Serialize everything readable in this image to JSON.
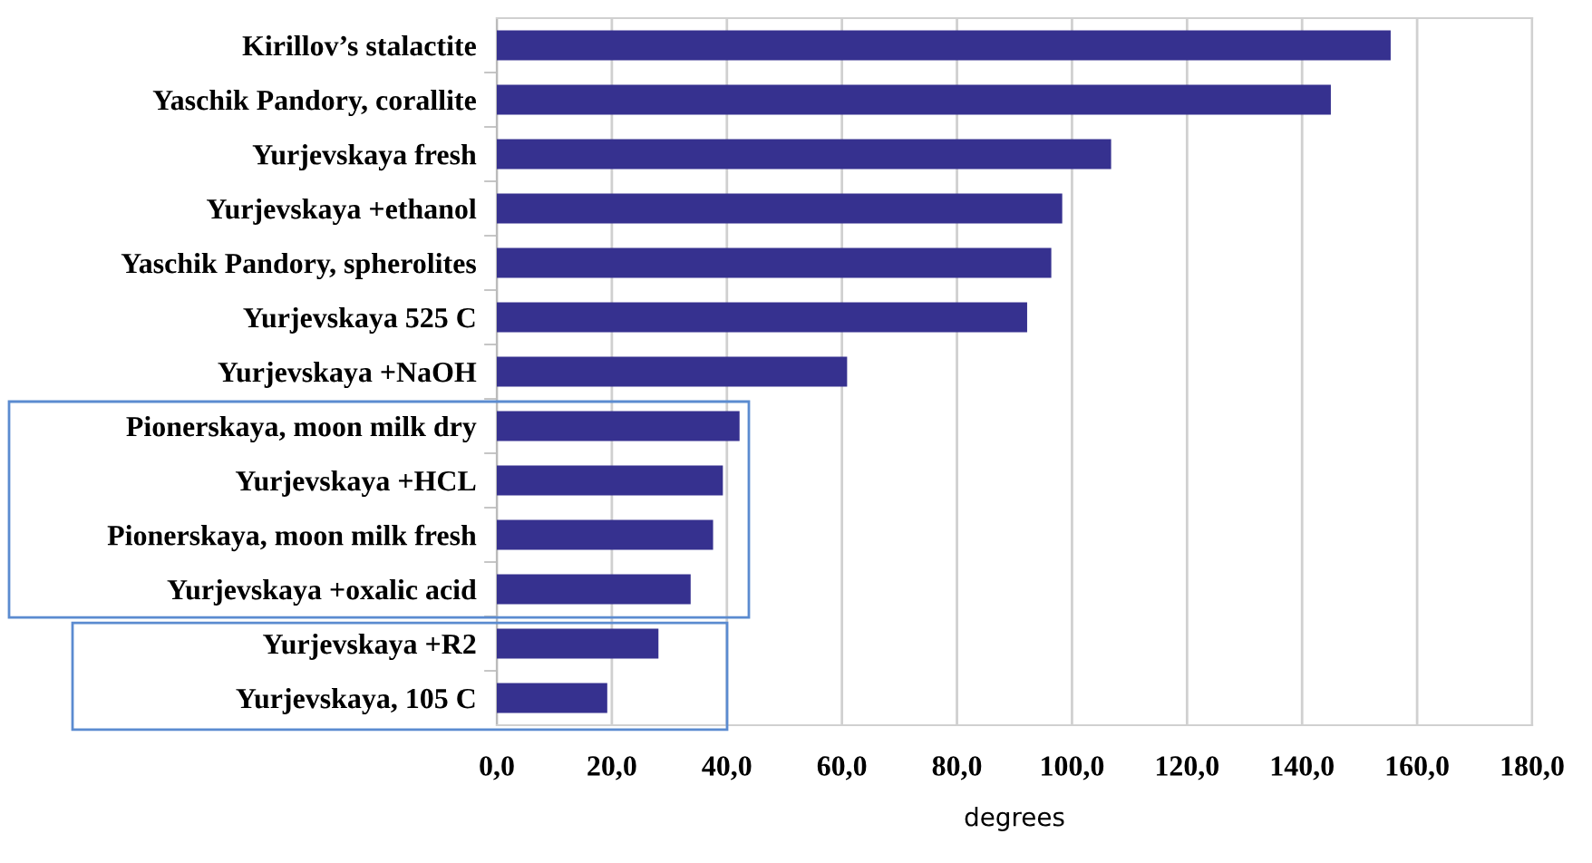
{
  "chart_data": {
    "type": "bar",
    "orientation": "horizontal",
    "xlabel": "degrees",
    "categories": [
      "Kirillov’s stalactite",
      "Yaschik Pandory, corallite",
      "Yurjevskaya fresh",
      "Yurjevskaya +ethanol",
      "Yaschik Pandory, spherolites",
      "Yurjevskaya 525 C",
      "Yurjevskaya +NaOH",
      "Pionerskaya, moon milk dry",
      "Yurjevskaya +HCL",
      "Pionerskaya, moon milk fresh",
      "Yurjevskaya +oxalic acid",
      "Yurjevskaya +R2",
      "Yurjevskaya, 105 C"
    ],
    "values": [
      155.4,
      145,
      106.8,
      98.3,
      96.4,
      92.2,
      60.9,
      42.2,
      39.3,
      37.6,
      33.7,
      28.1,
      19.2
    ],
    "color": "#36318f",
    "xlim": [
      0,
      180
    ],
    "xticks": [
      {
        "value": 0,
        "label": "0,0"
      },
      {
        "value": 20,
        "label": "20,0"
      },
      {
        "value": 40,
        "label": "40,0"
      },
      {
        "value": 60,
        "label": "60,0"
      },
      {
        "value": 80,
        "label": "80,0"
      },
      {
        "value": 100,
        "label": "100,0"
      },
      {
        "value": 120,
        "label": "120,0"
      },
      {
        "value": 140,
        "label": "140,0"
      },
      {
        "value": 160,
        "label": "160,0"
      },
      {
        "value": 180,
        "label": "180,0"
      }
    ],
    "grid": "x"
  }
}
